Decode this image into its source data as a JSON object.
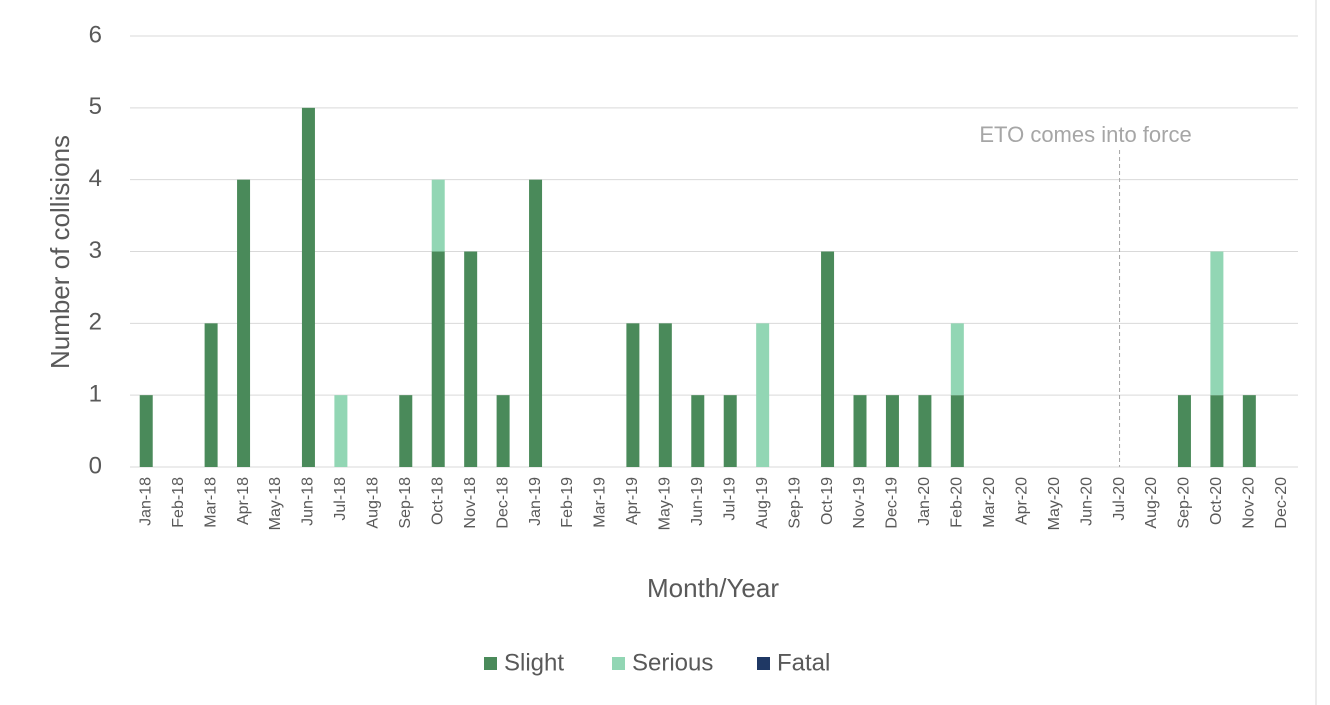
{
  "chart_data": {
    "type": "bar",
    "stacked": true,
    "xlabel": "Month/Year",
    "ylabel": "Number of collisions",
    "categories": [
      "Jan-18",
      "Feb-18",
      "Mar-18",
      "Apr-18",
      "May-18",
      "Jun-18",
      "Jul-18",
      "Aug-18",
      "Sep-18",
      "Oct-18",
      "Nov-18",
      "Dec-18",
      "Jan-19",
      "Feb-19",
      "Mar-19",
      "Apr-19",
      "May-19",
      "Jun-19",
      "Jul-19",
      "Aug-19",
      "Sep-19",
      "Oct-19",
      "Nov-19",
      "Dec-19",
      "Jan-20",
      "Feb-20",
      "Mar-20",
      "Apr-20",
      "May-20",
      "Jun-20",
      "Jul-20",
      "Aug-20",
      "Sep-20",
      "Oct-20",
      "Nov-20",
      "Dec-20"
    ],
    "series": [
      {
        "name": "Slight",
        "color": "#4a8a5a",
        "values": [
          1,
          0,
          2,
          4,
          0,
          5,
          0,
          0,
          1,
          3,
          3,
          1,
          4,
          0,
          0,
          2,
          2,
          1,
          1,
          0,
          0,
          3,
          1,
          1,
          1,
          1,
          0,
          0,
          0,
          0,
          0,
          0,
          1,
          1,
          1,
          0
        ]
      },
      {
        "name": "Serious",
        "color": "#92d6b4",
        "values": [
          0,
          0,
          0,
          0,
          0,
          0,
          1,
          0,
          0,
          1,
          0,
          0,
          0,
          0,
          0,
          0,
          0,
          0,
          0,
          2,
          0,
          0,
          0,
          0,
          0,
          1,
          0,
          0,
          0,
          0,
          0,
          0,
          0,
          2,
          0,
          0
        ]
      },
      {
        "name": "Fatal",
        "color": "#1f3864",
        "values": [
          0,
          0,
          0,
          0,
          0,
          0,
          0,
          0,
          0,
          0,
          0,
          0,
          0,
          0,
          0,
          0,
          0,
          0,
          0,
          0,
          0,
          0,
          0,
          0,
          0,
          0,
          0,
          0,
          0,
          0,
          0,
          0,
          0,
          0,
          0,
          0
        ]
      }
    ],
    "ylim": [
      0,
      6
    ],
    "yticks": [
      0,
      1,
      2,
      3,
      4,
      5,
      6
    ],
    "grid": true,
    "annotation": {
      "text": "ETO comes into force",
      "x": "Jul-20"
    },
    "legend": "bottom"
  }
}
